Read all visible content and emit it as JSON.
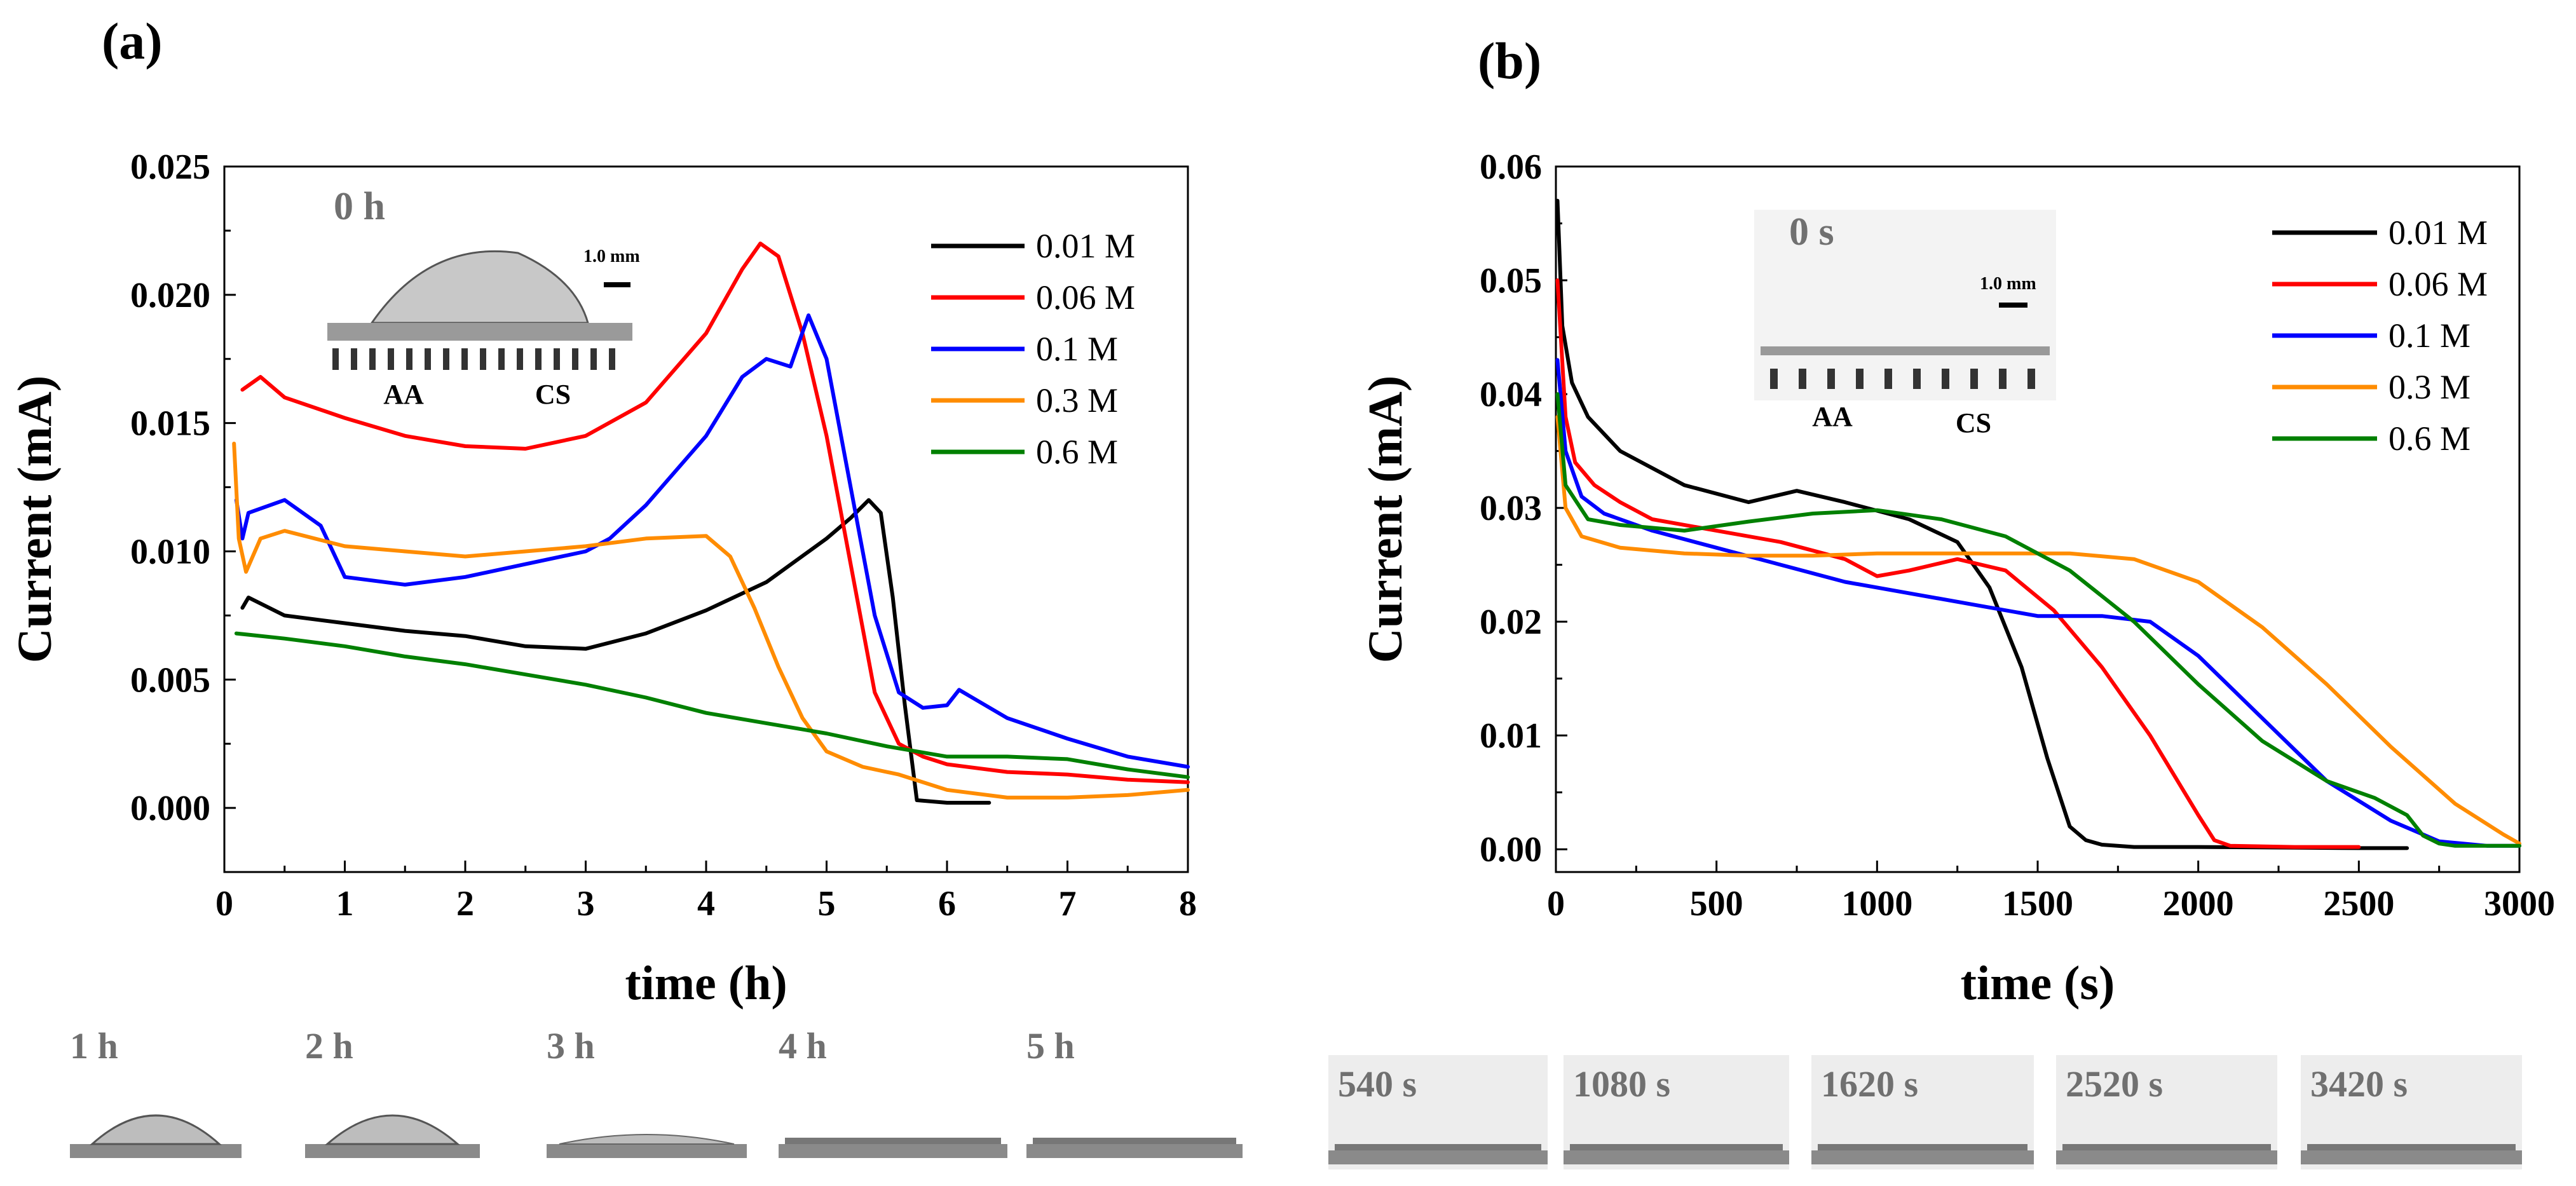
{
  "colors": {
    "0.01 M": "#000000",
    "0.06 M": "#ff0000",
    "0.1 M": "#0000ff",
    "0.3 M": "#ff8c00",
    "0.6 M": "#008000",
    "photo_label": "#707070"
  },
  "chart_data": [
    {
      "type": "line",
      "panel_label": "(a)",
      "xlabel": "time (h)",
      "ylabel": "Current (mA)",
      "xlim": [
        0,
        8
      ],
      "ylim": [
        -0.0025,
        0.025
      ],
      "xticks": [
        "0",
        "1",
        "2",
        "3",
        "4",
        "5",
        "6",
        "7",
        "8"
      ],
      "xtick_values": [
        0,
        1,
        2,
        3,
        4,
        5,
        6,
        7,
        8
      ],
      "yticks": [
        "0.000",
        "0.005",
        "0.010",
        "0.015",
        "0.020",
        "0.025"
      ],
      "ytick_values": [
        0,
        0.005,
        0.01,
        0.015,
        0.02,
        0.025
      ],
      "legend": [
        "0.01 M",
        "0.06 M",
        "0.1 M",
        "0.3 M",
        "0.6 M"
      ],
      "inset": {
        "time_label": "0 h",
        "scale_label": "1.0 mm",
        "left_label": "AA",
        "right_label": "CS"
      },
      "series": [
        {
          "name": "0.01 M",
          "x": [
            0.15,
            0.2,
            0.5,
            1,
            1.5,
            2,
            2.5,
            3,
            3.5,
            4,
            4.5,
            5,
            5.2,
            5.35,
            5.45,
            5.55,
            5.65,
            5.75,
            6,
            6.35
          ],
          "y": [
            0.0078,
            0.0082,
            0.0075,
            0.0072,
            0.0069,
            0.0067,
            0.0063,
            0.0062,
            0.0068,
            0.0077,
            0.0088,
            0.0105,
            0.0113,
            0.012,
            0.0115,
            0.0082,
            0.004,
            0.0003,
            0.0002,
            0.0002
          ]
        },
        {
          "name": "0.06 M",
          "x": [
            0.15,
            0.3,
            0.5,
            1,
            1.5,
            2,
            2.5,
            3,
            3.5,
            4,
            4.3,
            4.45,
            4.6,
            4.8,
            5,
            5.2,
            5.4,
            5.6,
            5.8,
            6,
            6.5,
            7,
            7.5,
            8
          ],
          "y": [
            0.0163,
            0.0168,
            0.016,
            0.0152,
            0.0145,
            0.0141,
            0.014,
            0.0145,
            0.0158,
            0.0185,
            0.021,
            0.022,
            0.0215,
            0.0185,
            0.0145,
            0.0095,
            0.0045,
            0.0025,
            0.002,
            0.0017,
            0.0014,
            0.0013,
            0.0011,
            0.001
          ]
        },
        {
          "name": "0.1 M",
          "x": [
            0.1,
            0.15,
            0.2,
            0.5,
            0.8,
            1,
            1.5,
            2,
            2.5,
            3,
            3.2,
            3.5,
            4,
            4.3,
            4.5,
            4.7,
            4.85,
            5,
            5.2,
            5.4,
            5.6,
            5.8,
            6,
            6.1,
            6.5,
            7,
            7.5,
            8
          ],
          "y": [
            0.012,
            0.0105,
            0.0115,
            0.012,
            0.011,
            0.009,
            0.0087,
            0.009,
            0.0095,
            0.01,
            0.0105,
            0.0118,
            0.0145,
            0.0168,
            0.0175,
            0.0172,
            0.0192,
            0.0175,
            0.0125,
            0.0075,
            0.0045,
            0.0039,
            0.004,
            0.0046,
            0.0035,
            0.0027,
            0.002,
            0.0016
          ]
        },
        {
          "name": "0.3 M",
          "x": [
            0.08,
            0.12,
            0.18,
            0.3,
            0.5,
            1,
            1.5,
            2,
            2.5,
            3,
            3.5,
            4,
            4.2,
            4.4,
            4.6,
            4.8,
            5,
            5.3,
            5.6,
            6,
            6.5,
            7,
            7.5,
            8
          ],
          "y": [
            0.0142,
            0.0105,
            0.0092,
            0.0105,
            0.0108,
            0.0102,
            0.01,
            0.0098,
            0.01,
            0.0102,
            0.0105,
            0.0106,
            0.0098,
            0.0078,
            0.0055,
            0.0035,
            0.0022,
            0.0016,
            0.0013,
            0.0007,
            0.0004,
            0.0004,
            0.0005,
            0.0007
          ]
        },
        {
          "name": "0.6 M",
          "x": [
            0.1,
            0.5,
            1,
            1.5,
            2,
            2.5,
            3,
            3.5,
            4,
            4.5,
            5,
            5.5,
            6,
            6.5,
            7,
            7.5,
            8
          ],
          "y": [
            0.0068,
            0.0066,
            0.0063,
            0.0059,
            0.0056,
            0.0052,
            0.0048,
            0.0043,
            0.0037,
            0.0033,
            0.0029,
            0.0024,
            0.002,
            0.002,
            0.0019,
            0.0015,
            0.0012
          ]
        }
      ],
      "photos": [
        "1 h",
        "2 h",
        "3 h",
        "4 h",
        "5 h"
      ]
    },
    {
      "type": "line",
      "panel_label": "(b)",
      "xlabel": "time (s)",
      "ylabel": "Current (mA)",
      "xlim": [
        0,
        3000
      ],
      "ylim": [
        -0.002,
        0.06
      ],
      "xticks": [
        "0",
        "500",
        "1000",
        "1500",
        "2000",
        "2500",
        "3000"
      ],
      "xtick_values": [
        0,
        500,
        1000,
        1500,
        2000,
        2500,
        3000
      ],
      "yticks": [
        "0.00",
        "0.01",
        "0.02",
        "0.03",
        "0.04",
        "0.05",
        "0.06"
      ],
      "ytick_values": [
        0,
        0.01,
        0.02,
        0.03,
        0.04,
        0.05,
        0.06
      ],
      "legend": [
        "0.01 M",
        "0.06 M",
        "0.1 M",
        "0.3 M",
        "0.6 M"
      ],
      "inset": {
        "time_label": "0 s",
        "scale_label": "1.0 mm",
        "left_label": "AA",
        "right_label": "CS"
      },
      "series": [
        {
          "name": "0.01 M",
          "x": [
            5,
            20,
            50,
            100,
            200,
            400,
            600,
            750,
            900,
            1100,
            1250,
            1350,
            1450,
            1530,
            1600,
            1650,
            1700,
            1800,
            2000,
            2500,
            2650
          ],
          "y": [
            0.057,
            0.046,
            0.041,
            0.038,
            0.035,
            0.032,
            0.0305,
            0.0315,
            0.0305,
            0.029,
            0.027,
            0.023,
            0.016,
            0.008,
            0.002,
            0.0008,
            0.0004,
            0.0002,
            0.0002,
            0.0001,
            0.0001
          ]
        },
        {
          "name": "0.06 M",
          "x": [
            5,
            30,
            60,
            120,
            200,
            300,
            500,
            700,
            900,
            1000,
            1100,
            1250,
            1400,
            1550,
            1700,
            1850,
            2000,
            2050,
            2100,
            2300,
            2500
          ],
          "y": [
            0.05,
            0.038,
            0.034,
            0.032,
            0.0305,
            0.029,
            0.028,
            0.027,
            0.0255,
            0.024,
            0.0245,
            0.0255,
            0.0245,
            0.021,
            0.016,
            0.01,
            0.003,
            0.0008,
            0.0003,
            0.0002,
            0.0002
          ]
        },
        {
          "name": "0.1 M",
          "x": [
            5,
            30,
            80,
            150,
            300,
            500,
            700,
            900,
            1100,
            1300,
            1500,
            1700,
            1850,
            2000,
            2200,
            2400,
            2600,
            2750,
            2900,
            3000
          ],
          "y": [
            0.043,
            0.035,
            0.031,
            0.0295,
            0.028,
            0.0265,
            0.025,
            0.0235,
            0.0225,
            0.0215,
            0.0205,
            0.0205,
            0.02,
            0.017,
            0.0115,
            0.006,
            0.0025,
            0.0007,
            0.0003,
            0.0003
          ]
        },
        {
          "name": "0.3 M",
          "x": [
            5,
            30,
            80,
            200,
            400,
            600,
            800,
            1000,
            1200,
            1400,
            1600,
            1800,
            2000,
            2200,
            2400,
            2600,
            2800,
            2950,
            3000
          ],
          "y": [
            0.038,
            0.03,
            0.0275,
            0.0265,
            0.026,
            0.0258,
            0.0258,
            0.026,
            0.026,
            0.026,
            0.026,
            0.0255,
            0.0235,
            0.0195,
            0.0145,
            0.009,
            0.004,
            0.0013,
            0.0005
          ]
        },
        {
          "name": "0.6 M",
          "x": [
            5,
            30,
            100,
            200,
            400,
            600,
            800,
            1000,
            1200,
            1400,
            1600,
            1800,
            2000,
            2200,
            2400,
            2550,
            2650,
            2700,
            2750,
            2800,
            3000
          ],
          "y": [
            0.04,
            0.032,
            0.029,
            0.0285,
            0.028,
            0.0288,
            0.0295,
            0.0298,
            0.029,
            0.0275,
            0.0245,
            0.02,
            0.0145,
            0.0095,
            0.006,
            0.0045,
            0.003,
            0.0012,
            0.0005,
            0.0003,
            0.0003
          ]
        }
      ],
      "photos": [
        "540 s",
        "1080 s",
        "1620 s",
        "2520 s",
        "3420 s"
      ]
    }
  ]
}
